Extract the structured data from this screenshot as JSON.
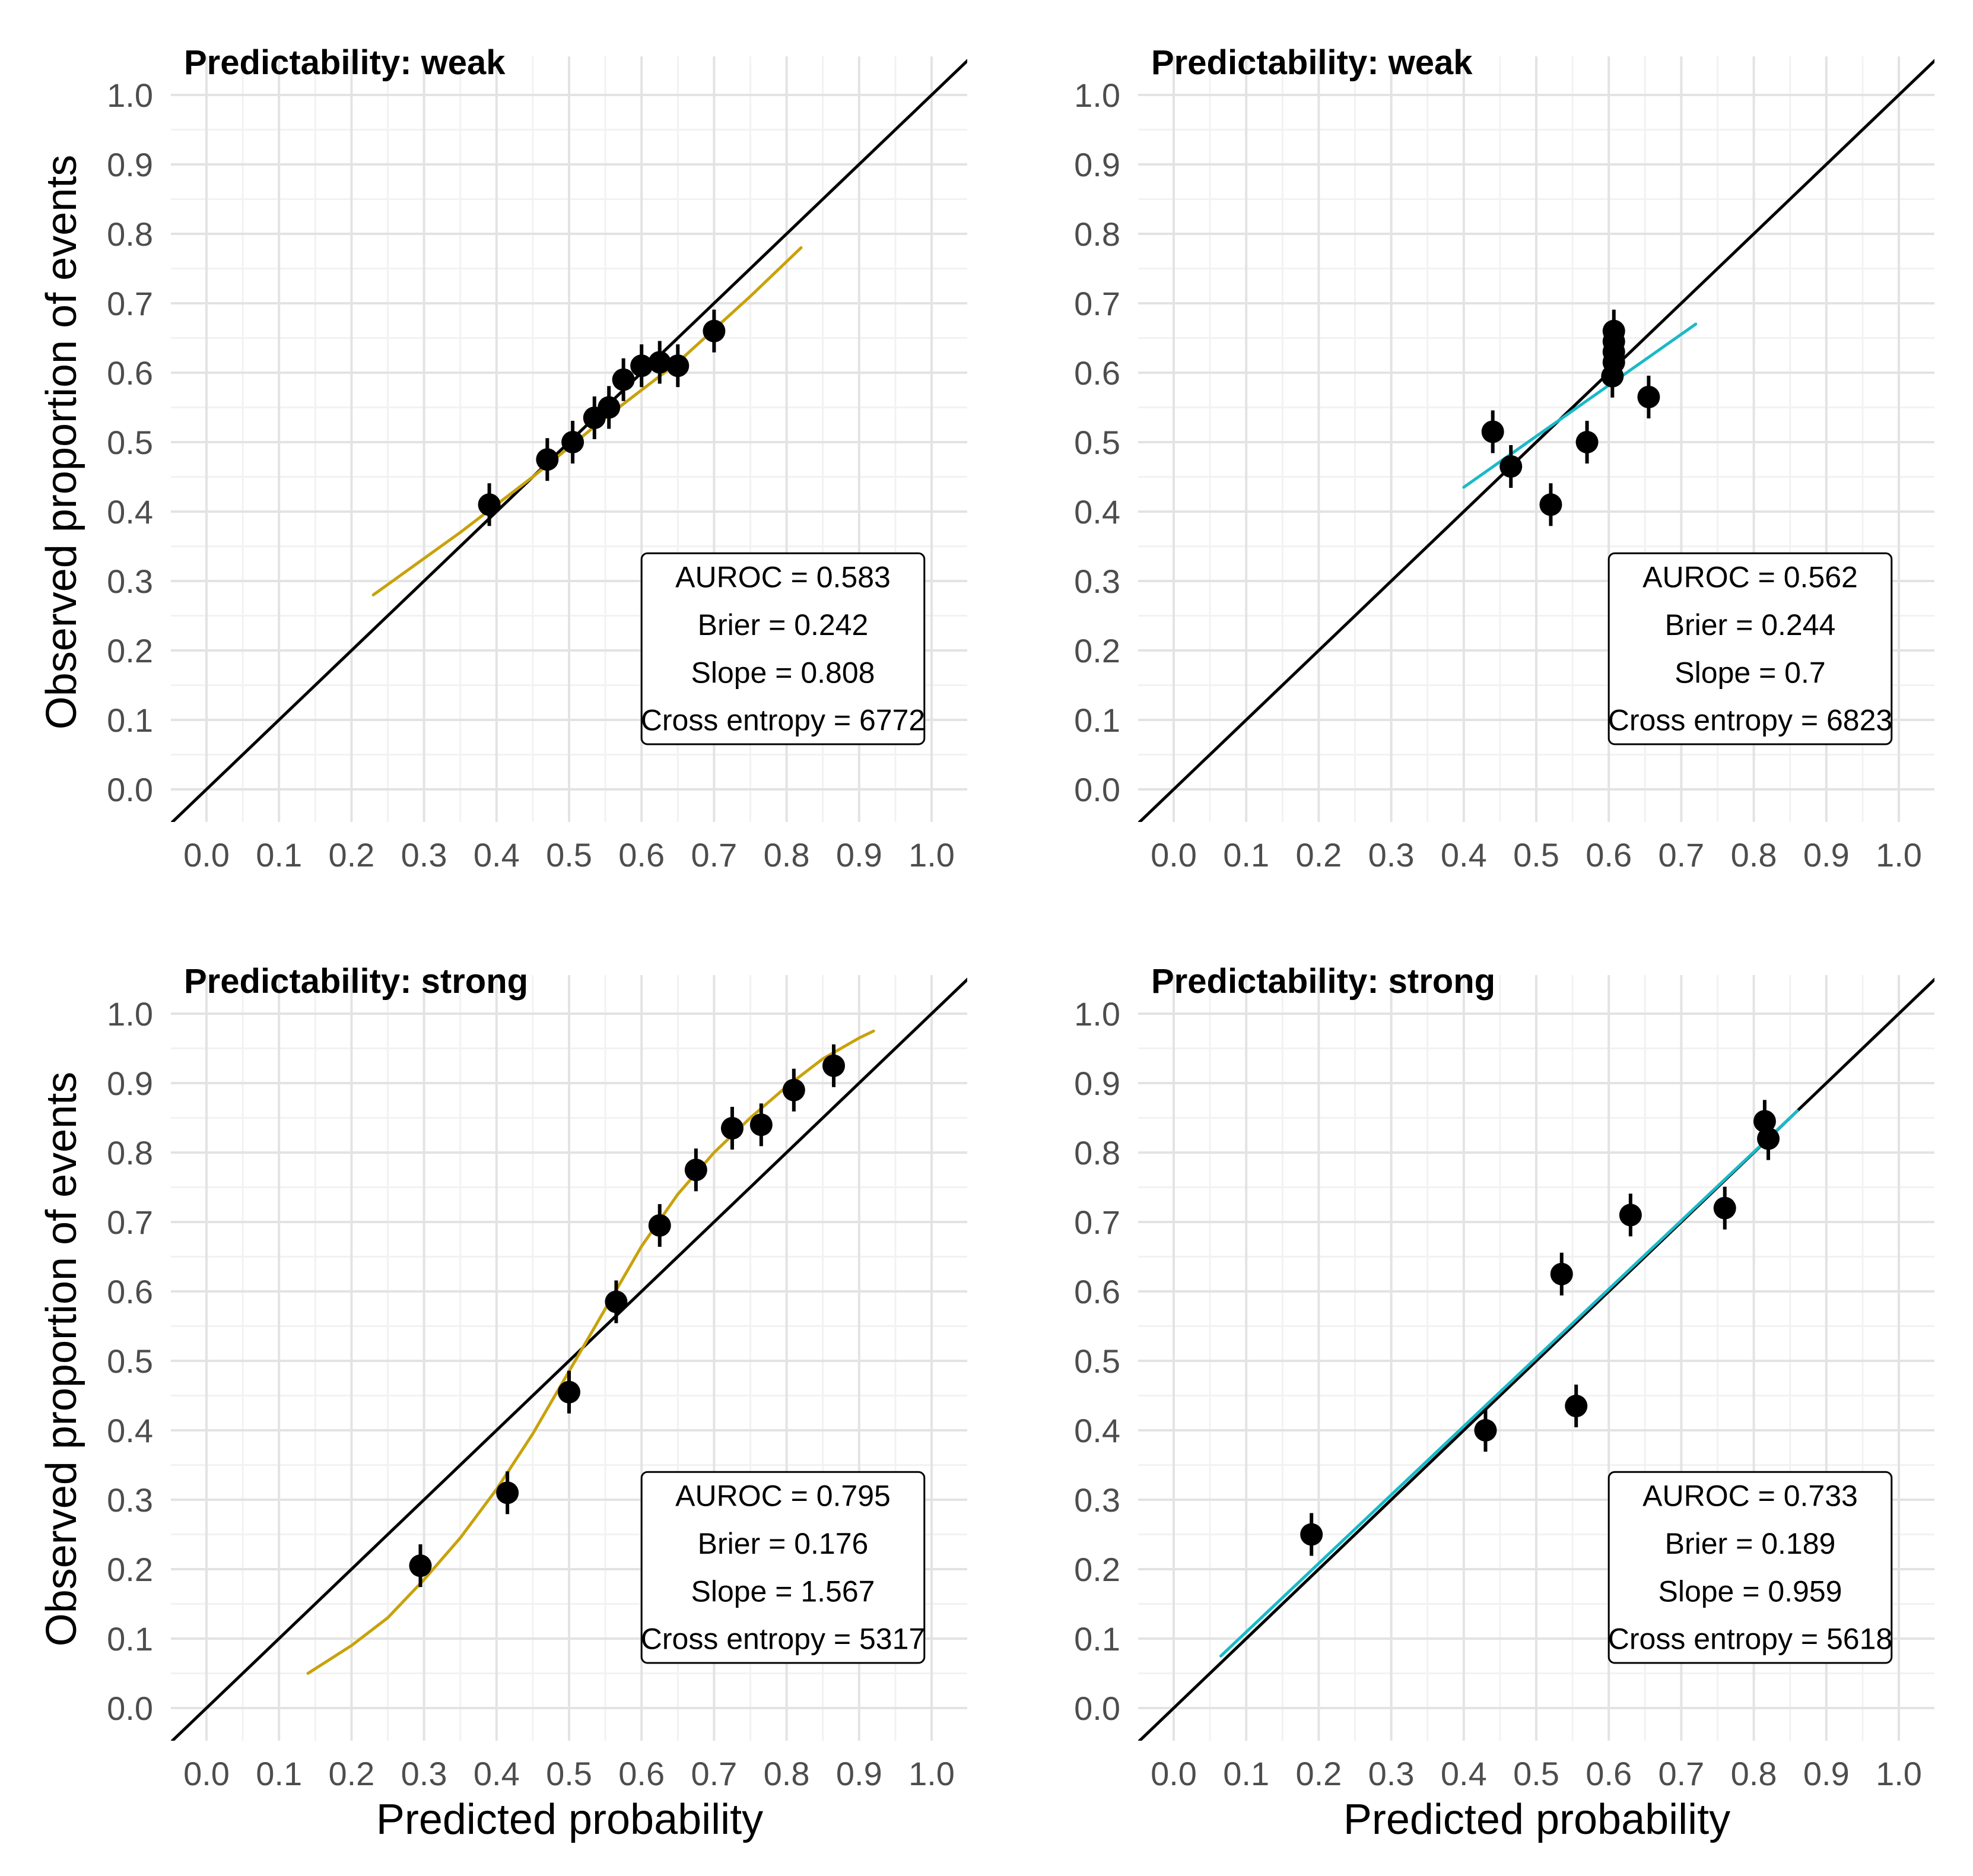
{
  "figure": {
    "x_axis_title": "Predicted probability",
    "y_axis_title": "Observed proportion of events",
    "colors": {
      "background": "#ffffff",
      "grid_major": "#e3e3e3",
      "grid_minor": "#f2f2f2",
      "diagonal": "#000000",
      "points": "#000000",
      "tick_text": "#4d4d4d",
      "curve_left": "#c8a20c",
      "curve_right": "#1ab9c8"
    }
  },
  "chart_data": [
    {
      "type": "scatter",
      "title": "Predictability: weak",
      "xlabel": "",
      "ylabel": "Observed proportion of events",
      "xlim": [
        0,
        1
      ],
      "ylim": [
        0,
        1
      ],
      "x_ticks": [
        "0.0",
        "0.1",
        "0.2",
        "0.3",
        "0.4",
        "0.5",
        "0.6",
        "0.7",
        "0.8",
        "0.9",
        "1.0"
      ],
      "y_ticks": [
        "0.0",
        "0.1",
        "0.2",
        "0.3",
        "0.4",
        "0.5",
        "0.6",
        "0.7",
        "0.8",
        "0.9",
        "1.0"
      ],
      "reference_line": "y = x",
      "curve_color": "curve_left",
      "curve": {
        "x": [
          0.23,
          0.35,
          0.45,
          0.55,
          0.65,
          0.75,
          0.82
        ],
        "y": [
          0.28,
          0.37,
          0.45,
          0.535,
          0.615,
          0.71,
          0.78
        ]
      },
      "points": {
        "x": [
          0.39,
          0.47,
          0.505,
          0.535,
          0.555,
          0.575,
          0.6,
          0.625,
          0.65,
          0.7
        ],
        "y": [
          0.41,
          0.475,
          0.5,
          0.535,
          0.55,
          0.59,
          0.61,
          0.615,
          0.61,
          0.66
        ]
      },
      "stats": [
        "AUROC = 0.583",
        "Brier = 0.242",
        "Slope = 0.808",
        "Cross entropy = 6772"
      ],
      "legend_position": "bottom-right"
    },
    {
      "type": "scatter",
      "title": "Predictability: weak",
      "xlabel": "",
      "ylabel": "",
      "xlim": [
        0,
        1
      ],
      "ylim": [
        0,
        1
      ],
      "x_ticks": [
        "0.0",
        "0.1",
        "0.2",
        "0.3",
        "0.4",
        "0.5",
        "0.6",
        "0.7",
        "0.8",
        "0.9",
        "1.0"
      ],
      "y_ticks": [
        "0.0",
        "0.1",
        "0.2",
        "0.3",
        "0.4",
        "0.5",
        "0.6",
        "0.7",
        "0.8",
        "0.9",
        "1.0"
      ],
      "reference_line": "y = x",
      "curve_color": "curve_right",
      "curve": {
        "x": [
          0.4,
          0.72
        ],
        "y": [
          0.435,
          0.67
        ]
      },
      "points": {
        "x": [
          0.44,
          0.465,
          0.52,
          0.57,
          0.605,
          0.607,
          0.607,
          0.607,
          0.607,
          0.655
        ],
        "y": [
          0.515,
          0.465,
          0.41,
          0.5,
          0.595,
          0.615,
          0.63,
          0.645,
          0.66,
          0.565
        ]
      },
      "stats": [
        "AUROC = 0.562",
        "Brier = 0.244",
        "Slope = 0.7",
        "Cross entropy = 6823"
      ],
      "legend_position": "bottom-right"
    },
    {
      "type": "scatter",
      "title": "Predictability: strong",
      "xlabel": "Predicted probability",
      "ylabel": "Observed proportion of events",
      "xlim": [
        0,
        1
      ],
      "ylim": [
        0,
        1
      ],
      "x_ticks": [
        "0.0",
        "0.1",
        "0.2",
        "0.3",
        "0.4",
        "0.5",
        "0.6",
        "0.7",
        "0.8",
        "0.9",
        "1.0"
      ],
      "y_ticks": [
        "0.0",
        "0.1",
        "0.2",
        "0.3",
        "0.4",
        "0.5",
        "0.6",
        "0.7",
        "0.8",
        "0.9",
        "1.0"
      ],
      "reference_line": "y = x",
      "curve_color": "curve_left",
      "curve": {
        "x": [
          0.14,
          0.2,
          0.25,
          0.3,
          0.35,
          0.4,
          0.45,
          0.5,
          0.55,
          0.6,
          0.65,
          0.7,
          0.75,
          0.8,
          0.85,
          0.9,
          0.92
        ],
        "y": [
          0.05,
          0.09,
          0.13,
          0.185,
          0.245,
          0.315,
          0.395,
          0.485,
          0.575,
          0.665,
          0.74,
          0.8,
          0.85,
          0.895,
          0.935,
          0.965,
          0.975
        ]
      },
      "points": {
        "x": [
          0.295,
          0.415,
          0.5,
          0.565,
          0.625,
          0.675,
          0.725,
          0.765,
          0.81,
          0.865
        ],
        "y": [
          0.205,
          0.31,
          0.455,
          0.585,
          0.695,
          0.775,
          0.835,
          0.84,
          0.89,
          0.925
        ]
      },
      "stats": [
        "AUROC = 0.795",
        "Brier = 0.176",
        "Slope = 1.567",
        "Cross entropy = 5317"
      ],
      "legend_position": "bottom-right"
    },
    {
      "type": "scatter",
      "title": "Predictability: strong",
      "xlabel": "Predicted probability",
      "ylabel": "",
      "xlim": [
        0,
        1
      ],
      "ylim": [
        0,
        1
      ],
      "x_ticks": [
        "0.0",
        "0.1",
        "0.2",
        "0.3",
        "0.4",
        "0.5",
        "0.6",
        "0.7",
        "0.8",
        "0.9",
        "1.0"
      ],
      "y_ticks": [
        "0.0",
        "0.1",
        "0.2",
        "0.3",
        "0.4",
        "0.5",
        "0.6",
        "0.7",
        "0.8",
        "0.9",
        "1.0"
      ],
      "reference_line": "y = x",
      "curve_color": "curve_right",
      "curve": {
        "x": [
          0.065,
          0.86
        ],
        "y": [
          0.075,
          0.86
        ]
      },
      "points": {
        "x": [
          0.19,
          0.43,
          0.535,
          0.555,
          0.63,
          0.76,
          0.815,
          0.82
        ],
        "y": [
          0.25,
          0.4,
          0.625,
          0.435,
          0.71,
          0.72,
          0.845,
          0.82
        ]
      },
      "stats": [
        "AUROC = 0.733",
        "Brier = 0.189",
        "Slope = 0.959",
        "Cross entropy = 5618"
      ],
      "legend_position": "bottom-right"
    }
  ]
}
